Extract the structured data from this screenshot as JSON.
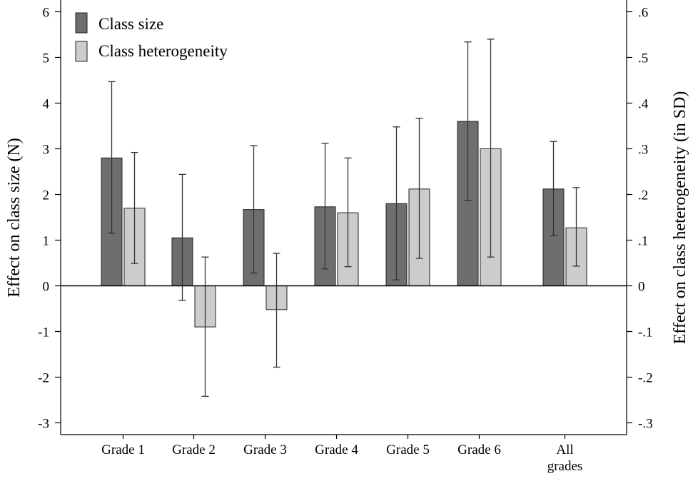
{
  "chart_data": {
    "type": "bar",
    "categories": [
      "Grade 1",
      "Grade 2",
      "Grade 3",
      "Grade 4",
      "Grade 5",
      "Grade 6",
      "All grades"
    ],
    "category_lines": [
      [
        "Grade 1"
      ],
      [
        "Grade 2"
      ],
      [
        "Grade 3"
      ],
      [
        "Grade 4"
      ],
      [
        "Grade 5"
      ],
      [
        "Grade 6"
      ],
      [
        "All",
        "grades"
      ]
    ],
    "series": [
      {
        "name": "Class size",
        "axis": "left",
        "color": "#6e6e6e",
        "values": [
          2.8,
          1.05,
          1.67,
          1.73,
          1.8,
          3.6,
          2.12
        ],
        "ci_low": [
          1.15,
          -0.32,
          0.28,
          0.37,
          0.13,
          1.87,
          1.1
        ],
        "ci_high": [
          4.47,
          2.44,
          3.07,
          3.12,
          3.48,
          5.34,
          3.16
        ]
      },
      {
        "name": "Class heterogeneity",
        "axis": "right",
        "color": "#cccccc",
        "values": [
          0.17,
          -0.09,
          -0.052,
          0.16,
          0.212,
          0.3,
          0.127
        ],
        "ci_low": [
          0.049,
          -0.242,
          -0.178,
          0.042,
          0.06,
          0.063,
          0.043
        ],
        "ci_high": [
          0.292,
          0.063,
          0.071,
          0.28,
          0.367,
          0.54,
          0.215
        ]
      }
    ],
    "ylabel_left": "Effect on class size (N)",
    "ylabel_right": "Effect on class heterogeneity (in SD)",
    "ylim_left": [
      -3.3,
      6.2
    ],
    "ylim_right": [
      -0.33,
      0.62
    ],
    "yticks_left": [
      {
        "value": -3,
        "label": "-3"
      },
      {
        "value": -2,
        "label": "-2"
      },
      {
        "value": -1,
        "label": "-1"
      },
      {
        "value": 0,
        "label": "0"
      },
      {
        "value": 1,
        "label": "1"
      },
      {
        "value": 2,
        "label": "2"
      },
      {
        "value": 3,
        "label": "3"
      },
      {
        "value": 4,
        "label": "4"
      },
      {
        "value": 5,
        "label": "5"
      },
      {
        "value": 6,
        "label": "6"
      }
    ],
    "yticks_right": [
      {
        "value": -0.3,
        "label": "-.3"
      },
      {
        "value": -0.2,
        "label": "-.2"
      },
      {
        "value": -0.1,
        "label": "-.1"
      },
      {
        "value": 0,
        "label": "0"
      },
      {
        "value": 0.1,
        "label": ".1"
      },
      {
        "value": 0.2,
        "label": ".2"
      },
      {
        "value": 0.3,
        "label": ".3"
      },
      {
        "value": 0.4,
        "label": ".4"
      },
      {
        "value": 0.5,
        "label": ".5"
      },
      {
        "value": 0.6,
        "label": ".6"
      }
    ],
    "grid": false,
    "legend_position": "top-left"
  }
}
